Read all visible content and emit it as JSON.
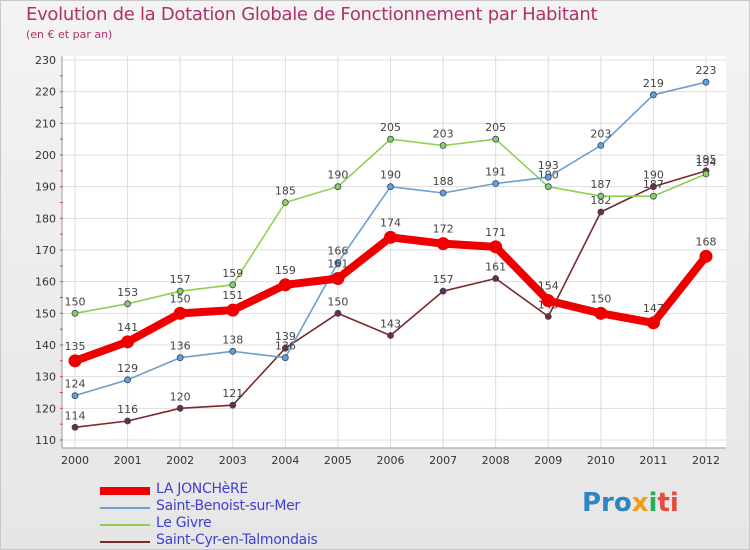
{
  "chart_data": {
    "type": "line",
    "title": "Evolution de la Dotation Globale de Fonctionnement par Habitant",
    "subtitle": "(en € et par an)",
    "xlabel": "",
    "ylabel": "",
    "x": [
      "2000",
      "2001",
      "2002",
      "2003",
      "2004",
      "2005",
      "2006",
      "2007",
      "2008",
      "2009",
      "2010",
      "2011",
      "2012"
    ],
    "ylim": [
      110,
      230
    ],
    "yticks": [
      "110",
      "120",
      "130",
      "140",
      "150",
      "160",
      "170",
      "180",
      "190",
      "200",
      "210",
      "220",
      "230"
    ],
    "grid": true,
    "series": [
      {
        "name": "LA JONCHèRE",
        "color": "#ee0000",
        "values": [
          135,
          141,
          150,
          151,
          159,
          161,
          174,
          172,
          171,
          154,
          150,
          147,
          168
        ]
      },
      {
        "name": "Saint-Benoist-sur-Mer",
        "color": "#6a9fd0",
        "values": [
          124,
          129,
          136,
          138,
          136,
          166,
          190,
          188,
          191,
          193,
          203,
          219,
          223
        ]
      },
      {
        "name": "Le Givre",
        "color": "#90d050",
        "values": [
          150,
          153,
          157,
          159,
          185,
          190,
          205,
          203,
          205,
          190,
          187,
          187,
          194
        ]
      },
      {
        "name": "Saint-Cyr-en-Talmondais",
        "color": "#7a2a2a",
        "values": [
          114,
          116,
          120,
          121,
          139,
          150,
          143,
          157,
          161,
          149,
          182,
          190,
          195
        ]
      }
    ]
  },
  "logo": {
    "part1": "Pro",
    "part2": "x",
    "part3": "i",
    "part4": "ti"
  }
}
